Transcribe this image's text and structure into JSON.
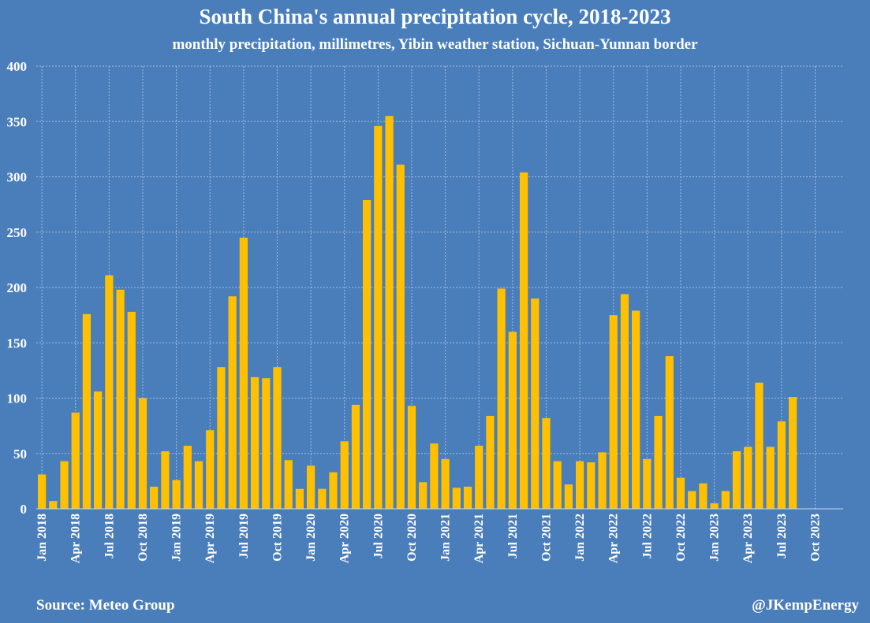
{
  "title": "South China's annual precipitation cycle, 2018-2023",
  "subtitle": "monthly precipitation, millimetres, Yibin weather station, Sichuan-Yunnan border",
  "source": "Source: Meteo Group",
  "credit": "@JKempEnergy",
  "colors": {
    "background": "#4A7EBB",
    "bar": "#FFC000",
    "text": "#FFFFFF"
  },
  "chart_data": {
    "type": "bar",
    "title": "South China's annual precipitation cycle, 2018-2023",
    "subtitle": "monthly precipitation, millimetres, Yibin weather station, Sichuan-Yunnan border",
    "xlabel": "",
    "ylabel": "",
    "ylim": [
      0,
      400
    ],
    "yticks": [
      0,
      50,
      100,
      150,
      200,
      250,
      300,
      350,
      400
    ],
    "grid": true,
    "legend": "none",
    "categories": [
      "Jan 2018",
      "Feb 2018",
      "Mar 2018",
      "Apr 2018",
      "May 2018",
      "Jun 2018",
      "Jul 2018",
      "Aug 2018",
      "Sep 2018",
      "Oct 2018",
      "Nov 2018",
      "Dec 2018",
      "Jan 2019",
      "Feb 2019",
      "Mar 2019",
      "Apr 2019",
      "May 2019",
      "Jun 2019",
      "Jul 2019",
      "Aug 2019",
      "Sep 2019",
      "Oct 2019",
      "Nov 2019",
      "Dec 2019",
      "Jan 2020",
      "Feb 2020",
      "Mar 2020",
      "Apr 2020",
      "May 2020",
      "Jun 2020",
      "Jul 2020",
      "Aug 2020",
      "Sep 2020",
      "Oct 2020",
      "Nov 2020",
      "Dec 2020",
      "Jan 2021",
      "Feb 2021",
      "Mar 2021",
      "Apr 2021",
      "May 2021",
      "Jun 2021",
      "Jul 2021",
      "Aug 2021",
      "Sep 2021",
      "Oct 2021",
      "Nov 2021",
      "Dec 2021",
      "Jan 2022",
      "Feb 2022",
      "Mar 2022",
      "Apr 2022",
      "May 2022",
      "Jun 2022",
      "Jul 2022",
      "Aug 2022",
      "Sep 2022",
      "Oct 2022",
      "Nov 2022",
      "Dec 2022",
      "Jan 2023",
      "Feb 2023",
      "Mar 2023",
      "Apr 2023",
      "May 2023",
      "Jun 2023",
      "Jul 2023",
      "Aug 2023",
      "Sep 2023",
      "Oct 2023",
      "Nov 2023",
      "Dec 2023"
    ],
    "tick_labels": [
      "Jan 2018",
      "Apr 2018",
      "Jul 2018",
      "Oct 2018",
      "Jan 2019",
      "Apr 2019",
      "Jul 2019",
      "Oct 2019",
      "Jan 2020",
      "Apr 2020",
      "Jul 2020",
      "Oct 2020",
      "Jan 2021",
      "Apr 2021",
      "Jul 2021",
      "Oct 2021",
      "Jan 2022",
      "Apr 2022",
      "Jul 2022",
      "Oct 2022",
      "Jan 2023",
      "Apr 2023",
      "Jul 2023",
      "Oct 2023"
    ],
    "values": [
      31,
      7,
      43,
      87,
      176,
      106,
      211,
      198,
      178,
      100,
      20,
      52,
      26,
      57,
      43,
      71,
      128,
      192,
      245,
      119,
      118,
      128,
      44,
      18,
      39,
      18,
      33,
      61,
      94,
      279,
      346,
      355,
      311,
      93,
      24,
      59,
      45,
      19,
      20,
      57,
      84,
      199,
      160,
      304,
      190,
      82,
      43,
      22,
      43,
      42,
      51,
      175,
      194,
      179,
      45,
      84,
      138,
      28,
      16,
      23,
      5,
      16,
      52,
      56,
      114,
      56,
      79,
      101,
      null,
      null,
      null,
      null
    ]
  }
}
